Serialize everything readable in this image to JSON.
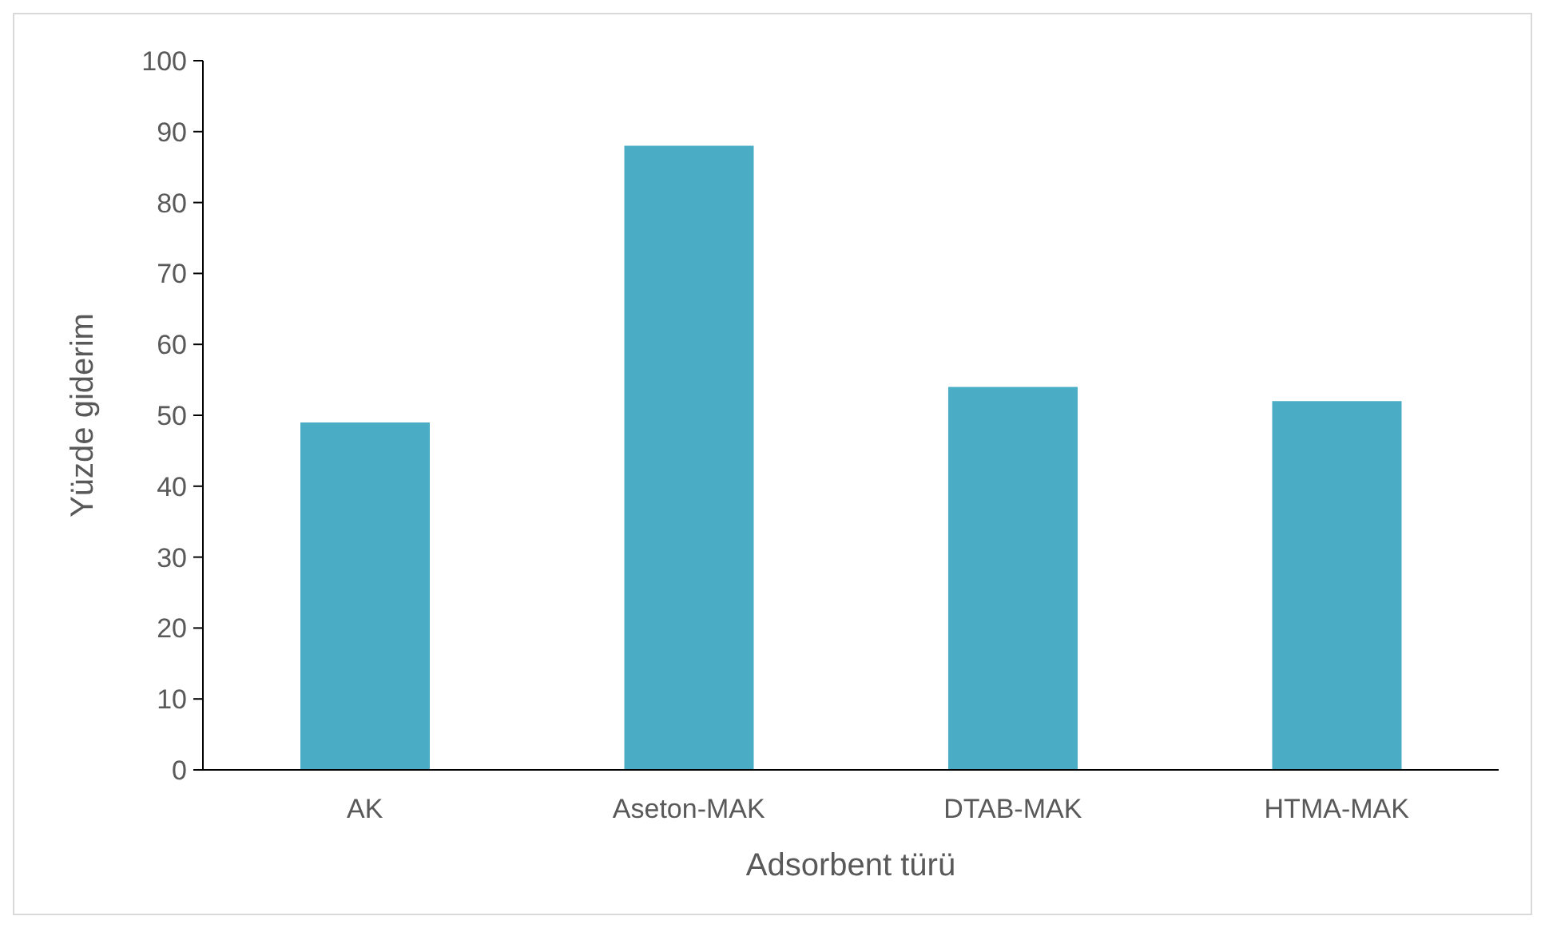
{
  "chart_data": {
    "type": "bar",
    "xlabel": "Adsorbent türü",
    "ylabel": "Yüzde giderim",
    "categories": [
      "AK",
      "Aseton-MAK",
      "DTAB-MAK",
      "HTMA-MAK"
    ],
    "values": [
      49,
      88,
      54,
      52
    ],
    "color": "#4bacc6",
    "ylim": [
      0,
      100
    ],
    "yticks": [
      0,
      10,
      20,
      30,
      40,
      50,
      60,
      70,
      80,
      90,
      100
    ],
    "grid": false
  }
}
